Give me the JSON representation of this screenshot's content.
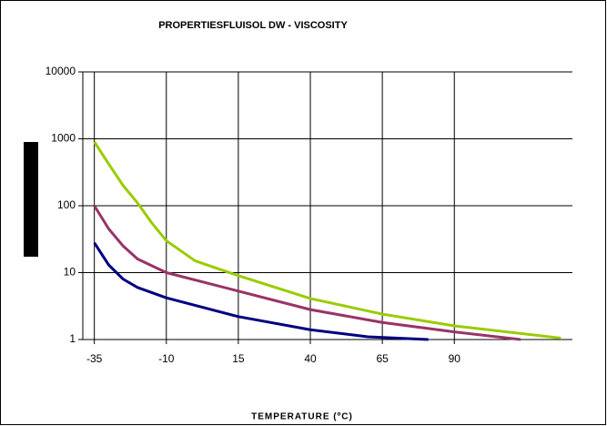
{
  "chart_data": {
    "type": "line",
    "title": "PROPERTIESFLUISOL DW - VISCOSITY",
    "x_label": "TEMPERATURE (ºC)",
    "ylog": true,
    "grid": true,
    "xlim": [
      -39,
      131
    ],
    "xticks": [
      -35,
      -10,
      15,
      40,
      65,
      90
    ],
    "ylim": [
      1,
      10000
    ],
    "yticks": [
      1,
      10,
      100,
      1000,
      10000
    ],
    "series": [
      {
        "color": "#99cc00",
        "x": [
          -35,
          -30,
          -25,
          -20,
          -15,
          -10,
          0,
          15,
          40,
          65,
          90,
          127
        ],
        "values": [
          900,
          420,
          200,
          110,
          55,
          30,
          15,
          9,
          4.1,
          2.4,
          1.6,
          1.05
        ]
      },
      {
        "color": "#993366",
        "x": [
          -35,
          -30,
          -25,
          -20,
          -10,
          15,
          40,
          65,
          90,
          113
        ],
        "values": [
          100,
          45,
          25,
          16,
          10,
          5.3,
          2.8,
          1.8,
          1.3,
          1.0
        ]
      },
      {
        "color": "#000080",
        "x": [
          -35,
          -30,
          -25,
          -20,
          -10,
          15,
          40,
          60,
          81
        ],
        "values": [
          28,
          13,
          8,
          6,
          4.2,
          2.2,
          1.4,
          1.1,
          1.0
        ]
      }
    ]
  }
}
